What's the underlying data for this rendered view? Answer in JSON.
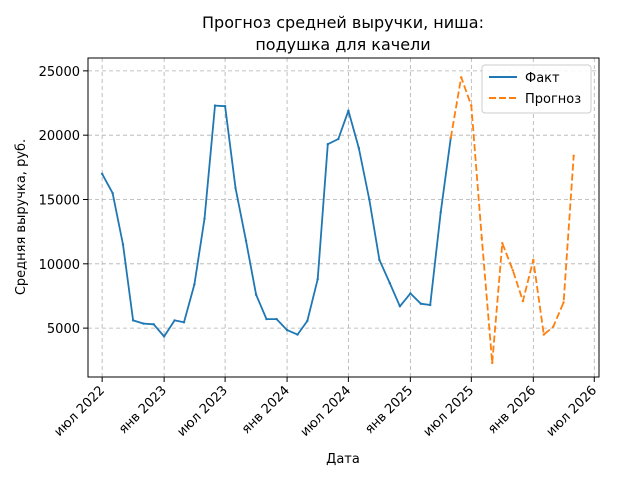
{
  "chart_data": {
    "type": "line",
    "title_lines": [
      "Прогноз средней выручки, ниша:",
      "подушка для качели"
    ],
    "xlabel": "Дата",
    "ylabel": "Средняя выручка, руб.",
    "x_ticks": [
      "июл 2022",
      "янв 2023",
      "июл 2023",
      "янв 2024",
      "июл 2024",
      "янв 2025",
      "июл 2025",
      "янв 2026",
      "июл 2026"
    ],
    "y_ticks": [
      "5000",
      "10000",
      "15000",
      "20000",
      "25000"
    ],
    "ylim": [
      1200,
      26000
    ],
    "xlim": [
      "2022-05-20",
      "2026-07-15"
    ],
    "grid": true,
    "legend_position": "top-right",
    "series": [
      {
        "name": "Факт",
        "color": "#1f77b4",
        "style": "solid",
        "points": [
          [
            "2022-07",
            17000
          ],
          [
            "2022-08",
            15500
          ],
          [
            "2022-09",
            11500
          ],
          [
            "2022-10",
            5600
          ],
          [
            "2022-11",
            5350
          ],
          [
            "2022-12",
            5300
          ],
          [
            "2023-01",
            4350
          ],
          [
            "2023-02",
            5600
          ],
          [
            "2023-03",
            5450
          ],
          [
            "2023-04",
            8400
          ],
          [
            "2023-05",
            13500
          ],
          [
            "2023-06",
            22300
          ],
          [
            "2023-07",
            22250
          ],
          [
            "2023-08",
            15900
          ],
          [
            "2023-09",
            11800
          ],
          [
            "2023-10",
            7600
          ],
          [
            "2023-11",
            5700
          ],
          [
            "2023-12",
            5700
          ],
          [
            "2024-01",
            4850
          ],
          [
            "2024-02",
            4500
          ],
          [
            "2024-03",
            5550
          ],
          [
            "2024-04",
            8800
          ],
          [
            "2024-05",
            19300
          ],
          [
            "2024-06",
            19700
          ],
          [
            "2024-07",
            21900
          ],
          [
            "2024-08",
            19000
          ],
          [
            "2024-09",
            15000
          ],
          [
            "2024-10",
            10300
          ],
          [
            "2024-11",
            8500
          ],
          [
            "2024-12",
            6700
          ],
          [
            "2025-01",
            7700
          ],
          [
            "2025-02",
            6900
          ],
          [
            "2025-03",
            6800
          ],
          [
            "2025-04",
            14000
          ],
          [
            "2025-05",
            19800
          ]
        ]
      },
      {
        "name": "Прогноз",
        "color": "#ff7f0e",
        "style": "dashed",
        "points": [
          [
            "2025-05",
            19800
          ],
          [
            "2025-06",
            24500
          ],
          [
            "2025-07",
            22300
          ],
          [
            "2025-08",
            12000
          ],
          [
            "2025-09",
            2300
          ],
          [
            "2025-10",
            11600
          ],
          [
            "2025-11",
            9500
          ],
          [
            "2025-12",
            7100
          ],
          [
            "2026-01",
            10300
          ],
          [
            "2026-02",
            4500
          ],
          [
            "2026-03",
            5100
          ],
          [
            "2026-04",
            7000
          ],
          [
            "2026-05",
            18400
          ]
        ]
      }
    ]
  }
}
